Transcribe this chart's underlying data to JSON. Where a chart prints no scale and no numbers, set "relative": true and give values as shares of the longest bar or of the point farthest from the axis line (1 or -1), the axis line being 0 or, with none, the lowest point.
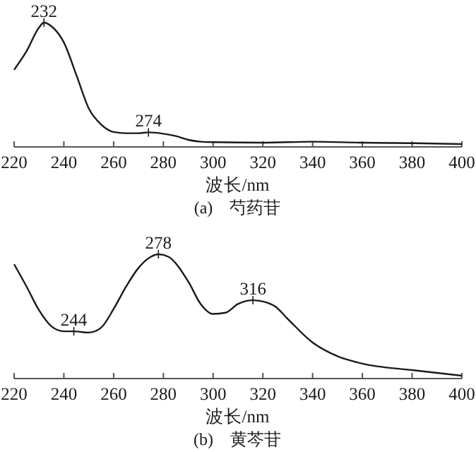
{
  "chart_data": [
    {
      "type": "line",
      "title": "(a)　芍药苷",
      "xlabel": "波长/nm",
      "relative": true,
      "color": "#1a1a1a",
      "xlim": [
        220,
        400
      ],
      "xticks": [
        220,
        240,
        260,
        280,
        300,
        320,
        340,
        360,
        380,
        400
      ],
      "x": [
        220,
        225,
        230,
        232,
        235,
        240,
        245,
        250,
        255,
        260,
        265,
        270,
        274,
        280,
        285,
        290,
        295,
        300,
        320,
        340,
        360,
        380,
        400
      ],
      "values": [
        0.62,
        0.77,
        0.96,
        1,
        0.97,
        0.84,
        0.58,
        0.31,
        0.18,
        0.12,
        0.11,
        0.11,
        0.117,
        0.106,
        0.087,
        0.057,
        0.042,
        0.038,
        0.034,
        0.042,
        0.034,
        0.03,
        0.023
      ],
      "annotations": [
        {
          "text": "232",
          "x": 232,
          "y": 1
        },
        {
          "text": "274",
          "x": 274,
          "y": 0.117
        }
      ]
    },
    {
      "type": "line",
      "title": "(b)　黄芩苷",
      "xlabel": "波长/nm",
      "relative": true,
      "color": "#1a1a1a",
      "xlim": [
        220,
        400
      ],
      "xticks": [
        220,
        240,
        260,
        280,
        300,
        320,
        340,
        360,
        380,
        400
      ],
      "x": [
        220,
        225,
        230,
        235,
        240,
        244,
        250,
        255,
        260,
        265,
        270,
        275,
        278,
        282,
        290,
        295,
        300,
        305,
        310,
        316,
        320,
        325,
        330,
        340,
        350,
        360,
        380,
        400
      ],
      "values": [
        0.92,
        0.74,
        0.55,
        0.42,
        0.38,
        0.38,
        0.37,
        0.41,
        0.56,
        0.74,
        0.89,
        0.98,
        1,
        0.98,
        0.78,
        0.6,
        0.52,
        0.53,
        0.6,
        0.63,
        0.62,
        0.58,
        0.48,
        0.29,
        0.18,
        0.12,
        0.068,
        0.023
      ],
      "annotations": [
        {
          "text": "244",
          "x": 244,
          "y": 0.38
        },
        {
          "text": "278",
          "x": 278,
          "y": 1
        },
        {
          "text": "316",
          "x": 316,
          "y": 0.63
        }
      ]
    }
  ]
}
